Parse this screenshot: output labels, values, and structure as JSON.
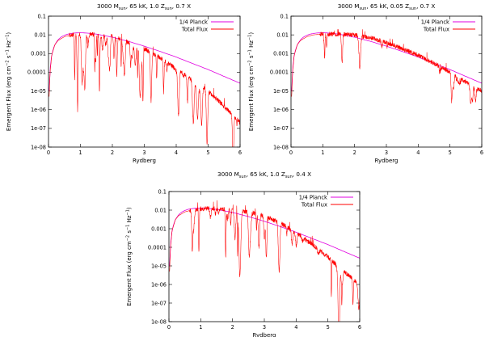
{
  "chart_data": [
    {
      "type": "line",
      "title": "3000 M_sun, 65 kK, 1.0 Z_sun, 0.7 X",
      "title_parts": {
        "prefix": "3000 M",
        "sub1": "sun",
        "mid": ", 65 kK, 1.0 Z",
        "sub2": "sun",
        "suffix": ", 0.7 X"
      },
      "xlabel": "Rydberg",
      "ylabel_parts": {
        "a": "Emergent Flux (erg cm",
        "sup1": "−2",
        "b": " s",
        "sup2": "−1",
        "c": " Hz",
        "sup3": "−1",
        "d": ")"
      },
      "xlim": [
        0,
        6
      ],
      "ylim": [
        1e-08,
        0.1
      ],
      "y_scale": "log",
      "x_ticks": [
        0,
        1,
        2,
        3,
        4,
        5,
        6
      ],
      "x_tick_labels": [
        "0",
        "1",
        "2",
        "3",
        "4",
        "5",
        "6"
      ],
      "y_ticks": [
        1e-08,
        1e-07,
        1e-06,
        1e-05,
        0.0001,
        0.001,
        0.01,
        0.1
      ],
      "y_tick_labels": [
        "1e-08",
        "1e-07",
        "1e-06",
        "1e-05",
        "0.0001",
        "0.001",
        "0.01",
        "0.1"
      ],
      "legend_position": "top-right",
      "series": [
        {
          "name": "1/4 Planck",
          "color": "#e000e0",
          "style": "smooth",
          "x": [
            0.02,
            0.05,
            0.1,
            0.15,
            0.2,
            0.3,
            0.4,
            0.5,
            0.6,
            0.8,
            1.0,
            1.2,
            1.5,
            2.0,
            2.5,
            3.0,
            3.5,
            4.0,
            4.5,
            5.0,
            5.5,
            6.0
          ],
          "y": [
            1e-05,
            0.00015,
            0.0008,
            0.0018,
            0.003,
            0.0055,
            0.0078,
            0.0095,
            0.011,
            0.0125,
            0.013,
            0.0125,
            0.011,
            0.0075,
            0.0045,
            0.0025,
            0.0013,
            0.00065,
            0.0003,
            0.00014,
            6e-05,
            2.6e-05
          ]
        },
        {
          "name": "Total Flux",
          "color": "#ff0000",
          "style": "spectrum",
          "x": [
            0.02,
            0.05,
            0.1,
            0.2,
            0.3,
            0.5,
            0.7,
            1.0,
            1.3,
            1.5,
            2.0,
            2.5,
            3.0,
            3.5,
            4.0,
            4.5,
            5.0,
            5.5,
            6.0
          ],
          "y": [
            5e-06,
            0.0001,
            0.0008,
            0.003,
            0.005,
            0.008,
            0.01,
            0.011,
            0.011,
            0.01,
            0.009,
            0.004,
            0.0018,
            0.0006,
            0.00015,
            4e-05,
            1e-05,
            1.5e-06,
            2e-07
          ],
          "features": {
            "seed": 11,
            "density": 55,
            "depth": 3.0,
            "start": 0.65,
            "max_height": 0.09
          }
        }
      ]
    },
    {
      "type": "line",
      "title": "3000 M_sun, 65 kK, 0.05 Z_sun, 0.7 X",
      "title_parts": {
        "prefix": "3000 M",
        "sub1": "sun",
        "mid": ", 65 kK, 0.05 Z",
        "sub2": "sun",
        "suffix": ", 0.7 X"
      },
      "xlabel": "Rydberg",
      "ylabel_parts": {
        "a": "Emergent Flux (erg cm",
        "sup1": "−2",
        "b": " s",
        "sup2": "−1",
        "c": " Hz",
        "sup3": "−1",
        "d": ")"
      },
      "xlim": [
        0,
        6
      ],
      "ylim": [
        1e-08,
        0.1
      ],
      "y_scale": "log",
      "x_ticks": [
        0,
        1,
        2,
        3,
        4,
        5,
        6
      ],
      "x_tick_labels": [
        "0",
        "1",
        "2",
        "3",
        "4",
        "5",
        "6"
      ],
      "y_ticks": [
        1e-08,
        1e-07,
        1e-06,
        1e-05,
        0.0001,
        0.001,
        0.01,
        0.1
      ],
      "y_tick_labels": [
        "1e-08",
        "1e-07",
        "1e-06",
        "1e-05",
        "0.0001",
        "0.001",
        "0.01",
        "0.1"
      ],
      "legend_position": "top-right",
      "series": [
        {
          "name": "1/4 Planck",
          "color": "#e000e0",
          "style": "smooth",
          "x": [
            0.02,
            0.05,
            0.1,
            0.15,
            0.2,
            0.3,
            0.4,
            0.5,
            0.6,
            0.8,
            1.0,
            1.2,
            1.5,
            2.0,
            2.5,
            3.0,
            3.5,
            4.0,
            4.5,
            5.0,
            5.5,
            6.0
          ],
          "y": [
            1e-05,
            0.00015,
            0.0008,
            0.0018,
            0.003,
            0.0055,
            0.0078,
            0.0095,
            0.011,
            0.0125,
            0.013,
            0.0125,
            0.011,
            0.0075,
            0.0045,
            0.0025,
            0.0013,
            0.00065,
            0.0003,
            0.00014,
            6e-05,
            2.6e-05
          ]
        },
        {
          "name": "Total Flux",
          "color": "#ff0000",
          "style": "spectrum",
          "x": [
            0.02,
            0.05,
            0.1,
            0.2,
            0.3,
            0.5,
            0.7,
            1.0,
            1.3,
            1.5,
            2.0,
            2.5,
            3.0,
            3.5,
            4.0,
            4.5,
            5.0,
            5.5,
            6.0
          ],
          "y": [
            5e-06,
            0.0001,
            0.0008,
            0.003,
            0.005,
            0.008,
            0.01,
            0.011,
            0.011,
            0.011,
            0.01,
            0.007,
            0.004,
            0.0018,
            0.0008,
            0.0003,
            0.0001,
            3e-05,
            1e-05
          ],
          "features": {
            "seed": 29,
            "density": 22,
            "depth": 1.6,
            "start": 0.9,
            "max_height": 0.02
          }
        }
      ]
    },
    {
      "type": "line",
      "title": "3000 M_sun, 65 kK, 1.0 Z_sun, 0.4 X",
      "title_parts": {
        "prefix": "3000 M",
        "sub1": "sun",
        "mid": ", 65 kK, 1.0 Z",
        "sub2": "sun",
        "suffix": ", 0.4 X"
      },
      "xlabel": "Rydberg",
      "ylabel_parts": {
        "a": "Emergent Flux (erg cm",
        "sup1": "−2",
        "b": " s",
        "sup2": "−1",
        "c": " Hz",
        "sup3": "−1",
        "d": ")"
      },
      "xlim": [
        0,
        6
      ],
      "ylim": [
        1e-08,
        0.1
      ],
      "y_scale": "log",
      "x_ticks": [
        0,
        1,
        2,
        3,
        4,
        5,
        6
      ],
      "x_tick_labels": [
        "0",
        "1",
        "2",
        "3",
        "4",
        "5",
        "6"
      ],
      "y_ticks": [
        1e-08,
        1e-07,
        1e-06,
        1e-05,
        0.0001,
        0.001,
        0.01,
        0.1
      ],
      "y_tick_labels": [
        "1e-08",
        "1e-07",
        "1e-06",
        "1e-05",
        "0.0001",
        "0.001",
        "0.01",
        "0.1"
      ],
      "legend_position": "top-right",
      "series": [
        {
          "name": "1/4 Planck",
          "color": "#e000e0",
          "style": "smooth",
          "x": [
            0.02,
            0.05,
            0.1,
            0.15,
            0.2,
            0.3,
            0.4,
            0.5,
            0.6,
            0.8,
            1.0,
            1.2,
            1.5,
            2.0,
            2.5,
            3.0,
            3.5,
            4.0,
            4.5,
            5.0,
            5.5,
            6.0
          ],
          "y": [
            1e-05,
            0.00015,
            0.0008,
            0.0018,
            0.003,
            0.0055,
            0.0078,
            0.0095,
            0.011,
            0.0125,
            0.013,
            0.0125,
            0.011,
            0.0075,
            0.0045,
            0.0025,
            0.0013,
            0.00065,
            0.0003,
            0.00014,
            6e-05,
            2.6e-05
          ]
        },
        {
          "name": "Total Flux",
          "color": "#ff0000",
          "style": "spectrum",
          "x": [
            0.02,
            0.05,
            0.1,
            0.2,
            0.3,
            0.5,
            0.7,
            1.0,
            1.3,
            1.5,
            2.0,
            2.5,
            3.0,
            3.5,
            4.0,
            4.5,
            5.0,
            5.5,
            6.0
          ],
          "y": [
            5e-06,
            0.0001,
            0.0008,
            0.003,
            0.005,
            0.008,
            0.01,
            0.012,
            0.013,
            0.012,
            0.011,
            0.008,
            0.005,
            0.002,
            0.0006,
            0.00015,
            3e-05,
            5e-06,
            1e-06
          ],
          "features": {
            "seed": 47,
            "density": 45,
            "depth": 2.6,
            "start": 0.65,
            "max_height": 0.04
          }
        }
      ]
    }
  ]
}
